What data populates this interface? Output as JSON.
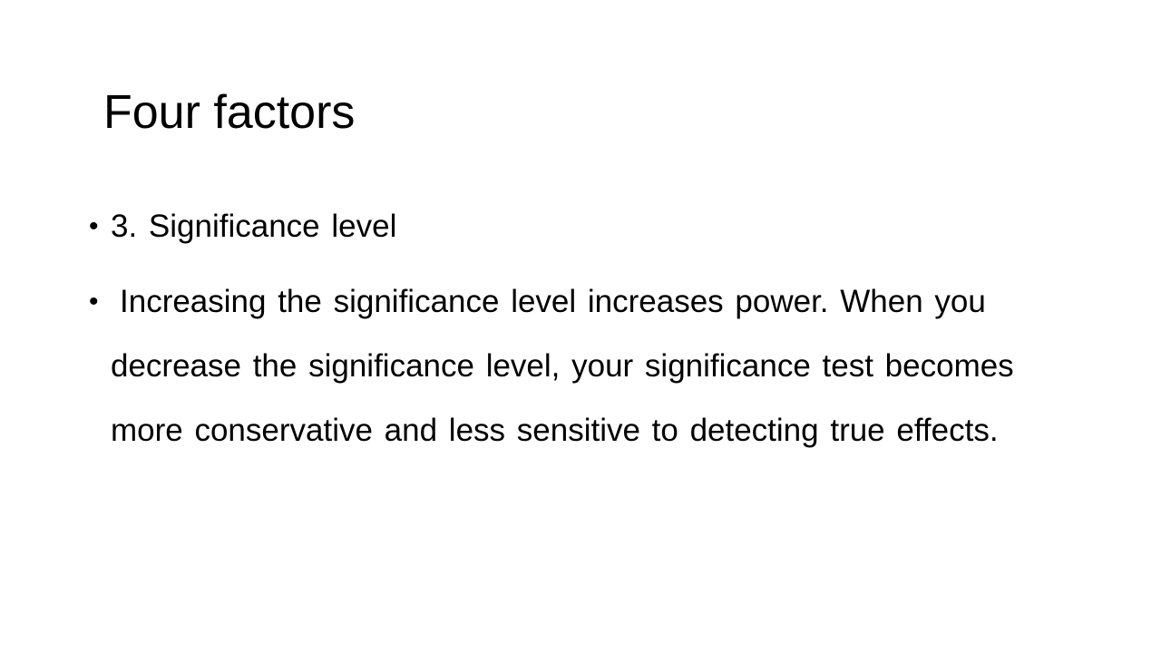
{
  "slide": {
    "title": "Four factors",
    "bullets": [
      {
        "marker": "•",
        "text": "3. Significance level"
      },
      {
        "marker": "•",
        "text": "Increasing the significance level increases power. When you decrease the significance level, your significance test becomes more conservative and less sensitive to detecting true effects."
      }
    ]
  }
}
